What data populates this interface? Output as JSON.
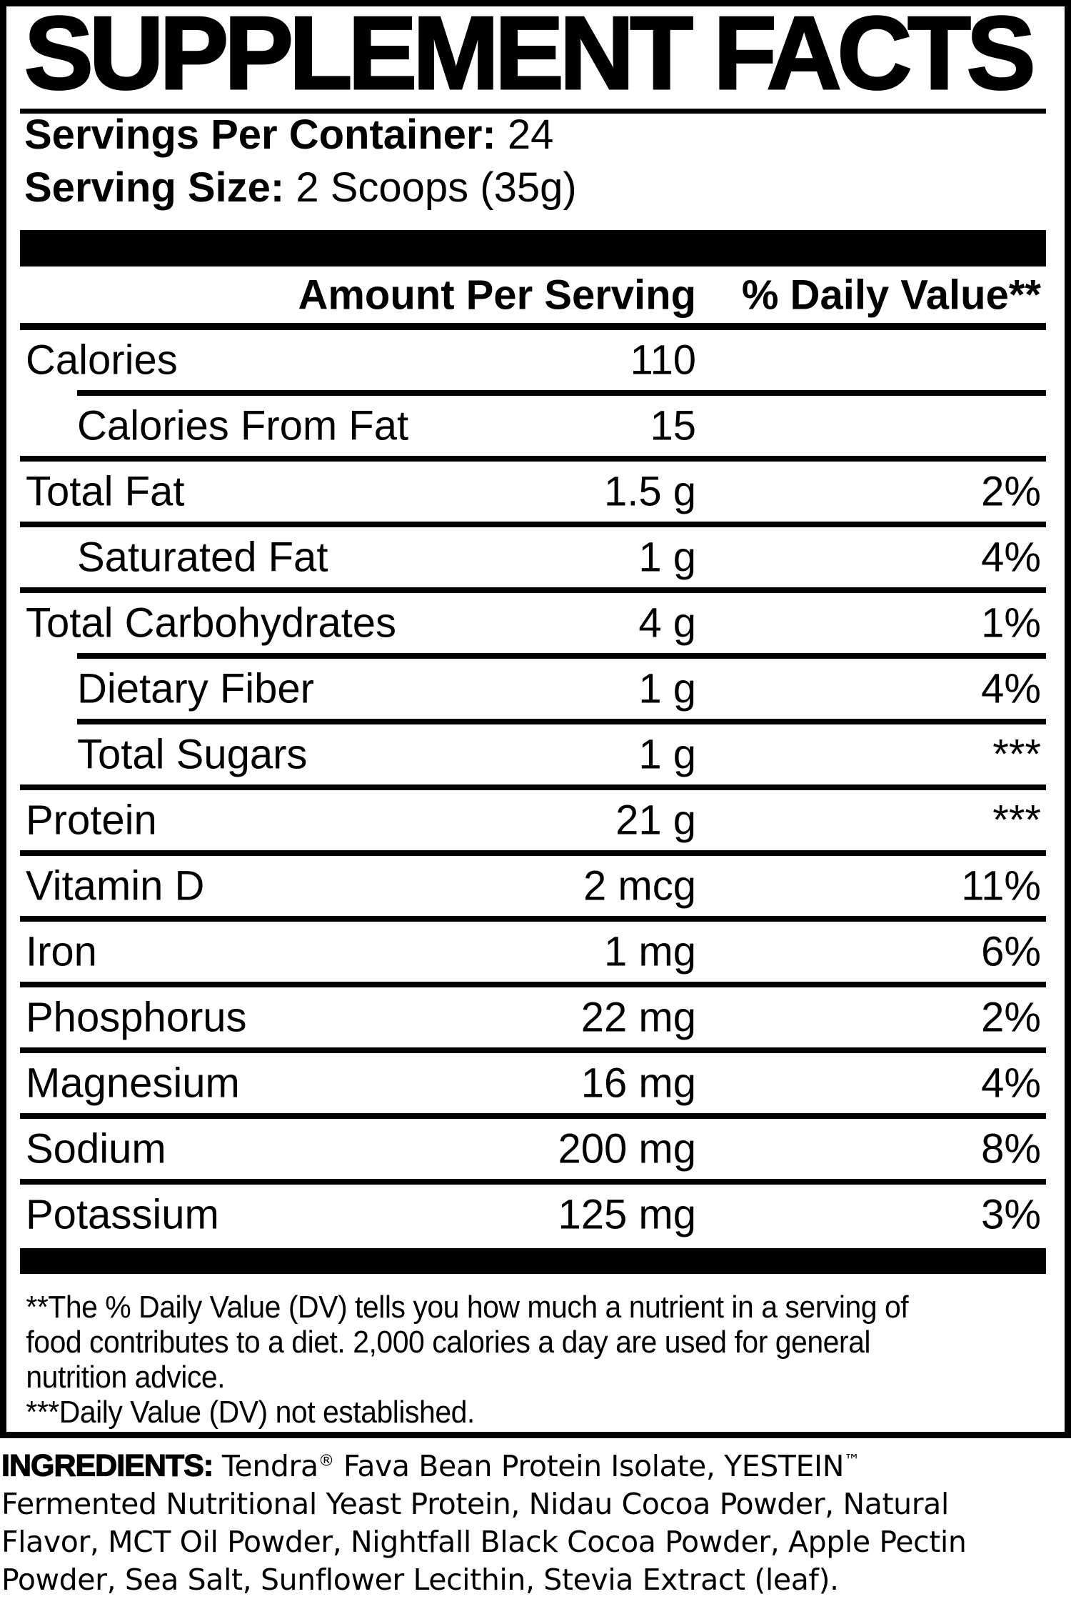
{
  "colors": {
    "ink": "#000000",
    "paper": "#ffffff"
  },
  "panel": {
    "title": "SUPPLEMENT FACTS"
  },
  "serving": {
    "containers_label": "Servings Per Container:",
    "containers_value": "24",
    "size_label": "Serving Size:",
    "size_value": "2 Scoops (35g)"
  },
  "table": {
    "amount_header": "Amount Per Serving",
    "dv_header": "% Daily Value**",
    "rows": [
      {
        "name": "Calories",
        "amount": "110",
        "dv": "",
        "indent": false,
        "rule": "indent"
      },
      {
        "name": "Calories From Fat",
        "amount": "15",
        "dv": "",
        "indent": true,
        "rule": "full"
      },
      {
        "name": "Total Fat",
        "amount": "1.5 g",
        "dv": "2%",
        "indent": false,
        "rule": "full"
      },
      {
        "name": "Saturated Fat",
        "amount": "1 g",
        "dv": "4%",
        "indent": true,
        "rule": "full"
      },
      {
        "name": "Total Carbohydrates",
        "amount": "4 g",
        "dv": "1%",
        "indent": false,
        "rule": "indent"
      },
      {
        "name": "Dietary Fiber",
        "amount": "1 g",
        "dv": "4%",
        "indent": true,
        "rule": "indent"
      },
      {
        "name": "Total Sugars",
        "amount": "1 g",
        "dv": "***",
        "indent": true,
        "rule": "full"
      },
      {
        "name": "Protein",
        "amount": "21 g",
        "dv": "***",
        "indent": false,
        "rule": "full"
      },
      {
        "name": "Vitamin D",
        "amount": "2 mcg",
        "dv": "11%",
        "indent": false,
        "rule": "full"
      },
      {
        "name": "Iron",
        "amount": "1 mg",
        "dv": "6%",
        "indent": false,
        "rule": "full"
      },
      {
        "name": "Phosphorus",
        "amount": "22 mg",
        "dv": "2%",
        "indent": false,
        "rule": "full"
      },
      {
        "name": "Magnesium",
        "amount": "16 mg",
        "dv": "4%",
        "indent": false,
        "rule": "full"
      },
      {
        "name": "Sodium",
        "amount": "200 mg",
        "dv": "8%",
        "indent": false,
        "rule": "full"
      },
      {
        "name": "Potassium",
        "amount": "125 mg",
        "dv": "3%",
        "indent": false,
        "rule": "none"
      }
    ]
  },
  "footnotes": {
    "lines": [
      "**The % Daily Value (DV) tells you how much a nutrient in a serving of",
      "food contributes to a diet. 2,000 calories a day are used for general",
      "nutrition advice.",
      "***Daily Value (DV) not established."
    ]
  },
  "ingredients": {
    "label": "INGREDIENTS:",
    "lines": [
      "Tendra® Fava Bean Protein Isolate, YESTEIN™",
      "Fermented Nutritional Yeast Protein, Nidau Cocoa Powder, Natural",
      "Flavor, MCT Oil Powder, Nightfall Black Cocoa Powder, Apple Pectin",
      "Powder, Sea Salt, Sunflower Lecithin, Stevia Extract (leaf)."
    ]
  }
}
